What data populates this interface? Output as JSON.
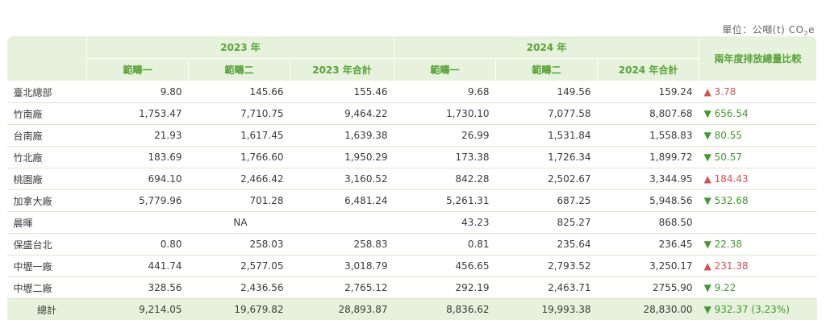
{
  "unit": {
    "label": "單位：公噸(t)",
    "co2": "CO",
    "sub": "2",
    "e": "e"
  },
  "header": {
    "year2023": "2023 年",
    "year2024": "2024 年",
    "compare": "兩年度排放總量比較",
    "scope1": "範疇一",
    "scope2": "範疇二",
    "total2023": "2023 年合計",
    "total2024": "2024 年合計"
  },
  "rows": [
    {
      "name": "臺北總部",
      "s1_23": "9.80",
      "s2_23": "145.66",
      "t23": "155.46",
      "s1_24": "9.68",
      "s2_24": "149.56",
      "t24": "159.24",
      "cmp": "▲ 3.78",
      "dir": "up"
    },
    {
      "name": "竹南廠",
      "s1_23": "1,753.47",
      "s2_23": "7,710.75",
      "t23": "9,464.22",
      "s1_24": "1,730.10",
      "s2_24": "7,077.58",
      "t24": "8,807.68",
      "cmp": "▼ 656.54",
      "dir": "down"
    },
    {
      "name": "台南廠",
      "s1_23": "21.93",
      "s2_23": "1,617.45",
      "t23": "1,639.38",
      "s1_24": "26.99",
      "s2_24": "1,531.84",
      "t24": "1,558.83",
      "cmp": "▼ 80.55",
      "dir": "down"
    },
    {
      "name": "竹北廠",
      "s1_23": "183.69",
      "s2_23": "1,766.60",
      "t23": "1,950.29",
      "s1_24": "173.38",
      "s2_24": "1,726.34",
      "t24": "1,899.72",
      "cmp": "▼ 50.57",
      "dir": "down"
    },
    {
      "name": "桃園廠",
      "s1_23": "694.10",
      "s2_23": "2,466.42",
      "t23": "3,160.52",
      "s1_24": "842.28",
      "s2_24": "2,502.67",
      "t24": "3,344.95",
      "cmp": "▲ 184.43",
      "dir": "up"
    },
    {
      "name": "加拿大廠",
      "s1_23": "5,779.96",
      "s2_23": "701.28",
      "t23": "6,481.24",
      "s1_24": "5,261.31",
      "s2_24": "687.25",
      "t24": "5,948.56",
      "cmp": "▼ 532.68",
      "dir": "down"
    },
    {
      "name": "晨暉",
      "na": "NA",
      "s1_24": "43.23",
      "s2_24": "825.27",
      "t24": "868.50",
      "cmp": "",
      "dir": ""
    },
    {
      "name": "保盛台北",
      "s1_23": "0.80",
      "s2_23": "258.03",
      "t23": "258.83",
      "s1_24": "0.81",
      "s2_24": "235.64",
      "t24": "236.45",
      "cmp": "▼ 22.38",
      "dir": "down"
    },
    {
      "name": "中壢一廠",
      "s1_23": "441.74",
      "s2_23": "2,577.05",
      "t23": "3,018.79",
      "s1_24": "456.65",
      "s2_24": "2,793.52",
      "t24": "3,250.17",
      "cmp": "▲ 231.38",
      "dir": "up"
    },
    {
      "name": "中壢二廠",
      "s1_23": "328.56",
      "s2_23": "2,436.56",
      "t23": "2,765.12",
      "s1_24": "292.19",
      "s2_24": "2,463.71",
      "t24": "2755.90",
      "cmp": "▼ 9.22",
      "dir": "down"
    }
  ],
  "total": {
    "name": "總計",
    "s1_23": "9,214.05",
    "s2_23": "19,679.82",
    "t23": "28,893.87",
    "s1_24": "8,836.62",
    "s2_24": "19,993.38",
    "t24": "28,830.00",
    "cmp": "▼ 932.37 (3.23%)",
    "dir": "down"
  },
  "colors": {
    "up": "#d94f4f",
    "down": "#3f9a2f",
    "header_bg": "#e6f2dc",
    "header_text": "#5aa338"
  }
}
